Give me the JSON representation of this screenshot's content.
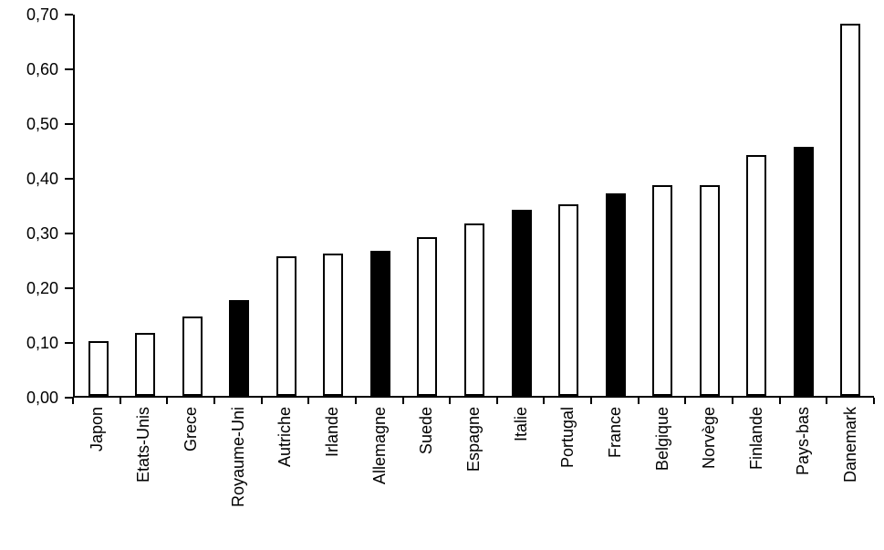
{
  "chart_data": {
    "type": "bar",
    "title": "",
    "xlabel": "",
    "ylabel": "",
    "categories": [
      "Japon",
      "Etats-Unis",
      "Grece",
      "Royaume-Uni",
      "Autriche",
      "Irlande",
      "Allemagne",
      "Suede",
      "Espagne",
      "Italie",
      "Portugal",
      "France",
      "Belgique",
      "Norvège",
      "Finlande",
      "Pays-bas",
      "Danemark"
    ],
    "values": [
      0.1,
      0.115,
      0.145,
      0.175,
      0.255,
      0.26,
      0.265,
      0.29,
      0.315,
      0.34,
      0.35,
      0.37,
      0.385,
      0.385,
      0.44,
      0.455,
      0.68
    ],
    "highlighted": [
      false,
      false,
      false,
      true,
      false,
      false,
      true,
      false,
      false,
      true,
      false,
      true,
      false,
      false,
      false,
      true,
      false
    ],
    "ylim": [
      0,
      0.7
    ],
    "ytick_step": 0.1,
    "ytick_labels": [
      "0,00",
      "0,10",
      "0,20",
      "0,30",
      "0,40",
      "0,50",
      "0,60",
      "0,70"
    ],
    "grid": false,
    "legend": "none",
    "colors": {
      "background": "#ffffff",
      "axis": "#000000",
      "bar_fill": "#ffffff",
      "bar_border": "#000000",
      "bar_highlight": "#000000"
    }
  }
}
